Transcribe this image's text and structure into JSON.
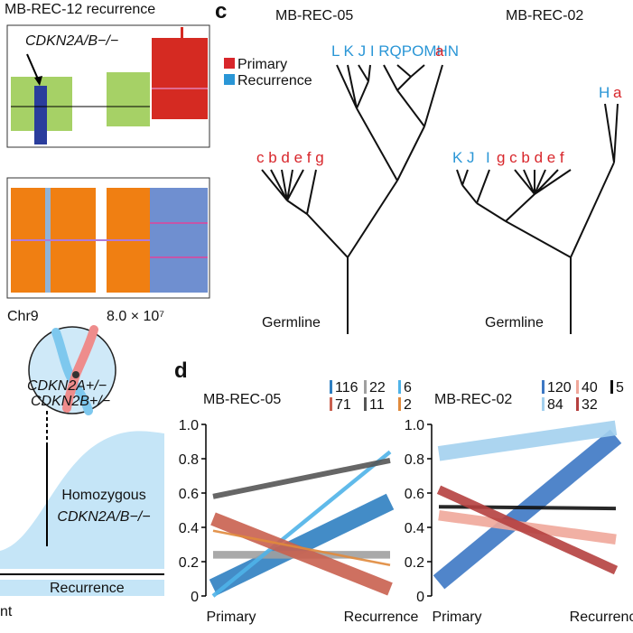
{
  "panel_a": {
    "title": "MB-REC-12 recurrence",
    "annotation": "CDKN2A/B−/−",
    "x_label_left": "Chr9",
    "x_label_right": "8.0 × 10⁷"
  },
  "panel_c": {
    "letter": "c",
    "legend": [
      "Primary",
      "Recurrence"
    ],
    "trees": [
      {
        "title": "MB-REC-05",
        "germline": "Germline",
        "leaves": [
          "L K J I RQPOMHN",
          "a",
          "c b d e f  g"
        ]
      },
      {
        "title": "MB-REC-02",
        "germline": "Germline",
        "leaves": [
          "H",
          "a",
          "K J",
          "I",
          "g c  b d  e  f"
        ]
      }
    ]
  },
  "panel_b": {
    "chrom_labels": [
      "CDKN2A+/−",
      "CDKN2B+/−"
    ],
    "area_label": [
      "Homozygous",
      "CDKN2A/B−/−"
    ],
    "bar_label": "Recurrence",
    "footer": "nt"
  },
  "panel_d": {
    "letter": "d"
  },
  "chart_data": [
    {
      "type": "line",
      "title": "MB-REC-05",
      "categories": [
        "Primary",
        "Recurrence"
      ],
      "ylim": [
        0,
        1
      ],
      "yticks": [
        0,
        0.2,
        0.4,
        0.6,
        0.8,
        {
          "value": 1,
          "label": "1.0"
        }
      ],
      "series": [
        {
          "name": "116",
          "color": "#2f7fc1",
          "values": [
            0.05,
            0.55
          ]
        },
        {
          "name": "22",
          "color": "#a0a0a0",
          "values": [
            0.24,
            0.24
          ]
        },
        {
          "name": "6",
          "color": "#4fb3e8",
          "values": [
            0,
            0.84
          ]
        },
        {
          "name": "71",
          "color": "#c9604f",
          "values": [
            0.45,
            0.04
          ]
        },
        {
          "name": "11",
          "color": "#555555",
          "values": [
            0.58,
            0.79
          ]
        },
        {
          "name": "2",
          "color": "#e08a3c",
          "values": [
            0.38,
            0.18
          ]
        }
      ]
    },
    {
      "type": "line",
      "title": "MB-REC-02",
      "categories": [
        "Primary",
        "Recurrence"
      ],
      "ylim": [
        0,
        1
      ],
      "yticks": [
        0,
        0.2,
        0.4,
        0.6,
        0.8,
        {
          "value": 1,
          "label": "1.0"
        }
      ],
      "series": [
        {
          "name": "120",
          "color": "#3d78c4",
          "values": [
            0.08,
            0.93
          ]
        },
        {
          "name": "40",
          "color": "#f0a79a",
          "values": [
            0.47,
            0.33
          ]
        },
        {
          "name": "5",
          "color": "#111111",
          "values": [
            0.52,
            0.51
          ]
        },
        {
          "name": "84",
          "color": "#a3d0ee",
          "values": [
            0.83,
            0.98
          ]
        },
        {
          "name": "32",
          "color": "#b5403f",
          "values": [
            0.62,
            0.15
          ]
        }
      ]
    }
  ]
}
